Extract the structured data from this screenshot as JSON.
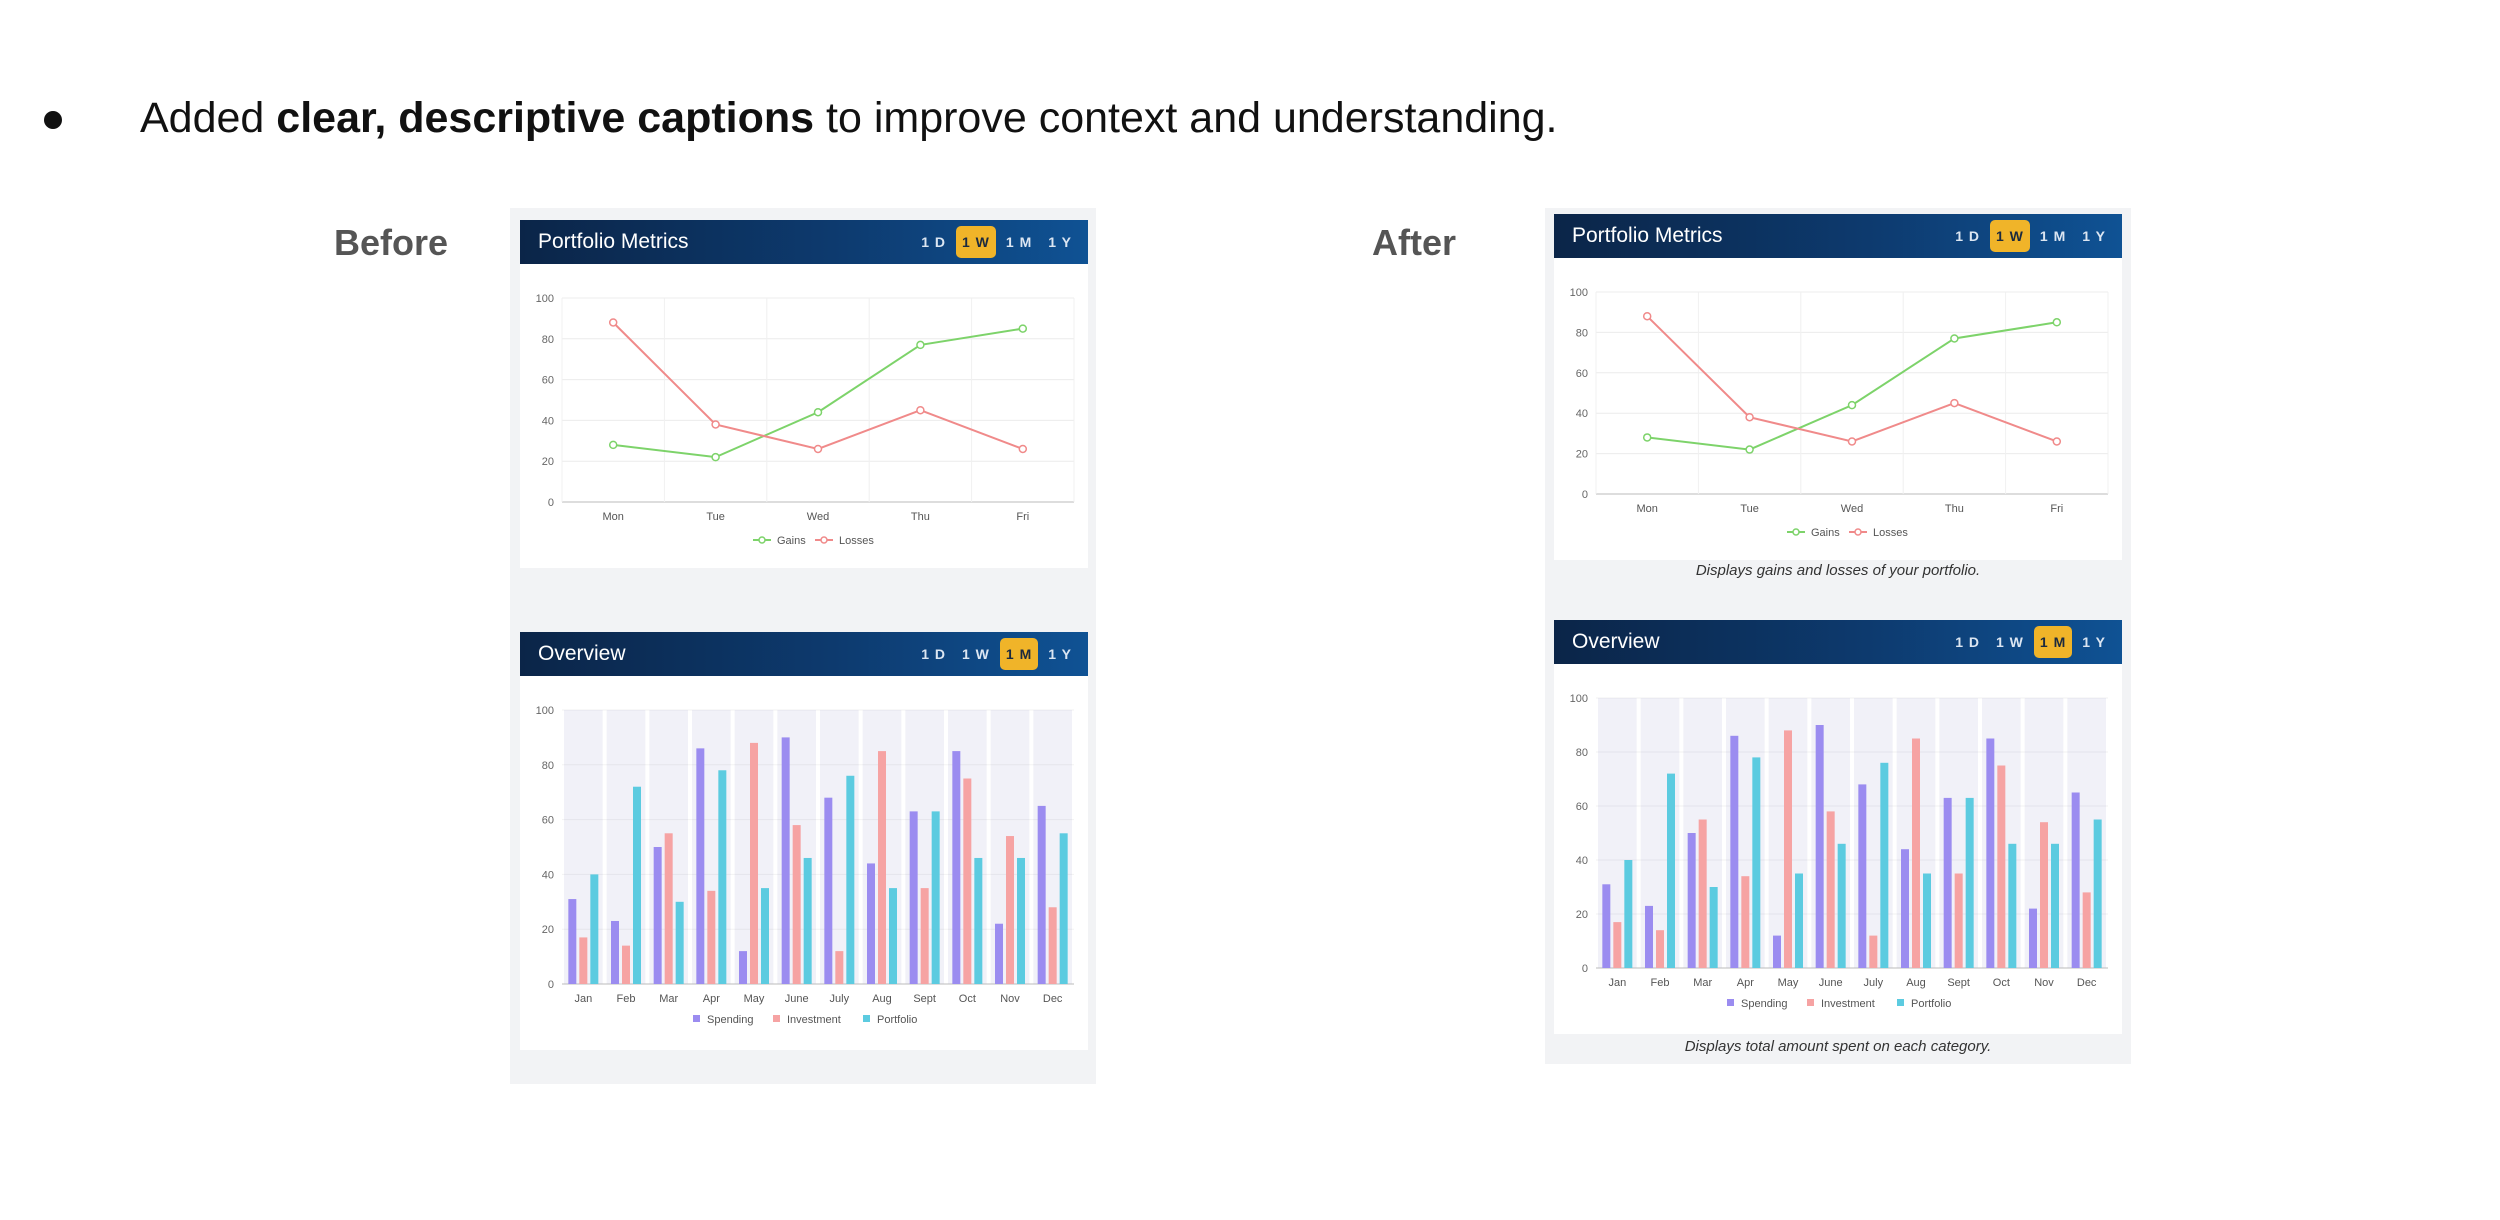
{
  "bullet": {
    "text_before": "Added ",
    "text_bold": "clear, descriptive captions",
    "text_after": " to improve context and understanding."
  },
  "before": {
    "label": "Before"
  },
  "after": {
    "label": "After",
    "portfolio_caption": "Displays gains and losses of your portfolio.",
    "overview_caption": "Displays total amount spent on each category."
  },
  "range_buttons": [
    "1 D",
    "1 W",
    "1 M",
    "1 Y"
  ],
  "portfolio": {
    "title": "Portfolio Metrics",
    "active_range": "1 W"
  },
  "overview": {
    "title": "Overview",
    "active_range": "1 M"
  },
  "colors": {
    "gains": "#7dd36a",
    "losses": "#f08a8a",
    "spending": "#9b8cf0",
    "investment": "#f6a3a3",
    "portfolio": "#5ccbe0",
    "active_btn": "#f0b429"
  },
  "chart_data": [
    {
      "type": "line",
      "title": "Portfolio Metrics",
      "categories": [
        "Mon",
        "Tue",
        "Wed",
        "Thu",
        "Fri"
      ],
      "series": [
        {
          "name": "Gains",
          "values": [
            28,
            22,
            44,
            77,
            85
          ]
        },
        {
          "name": "Losses",
          "values": [
            88,
            38,
            26,
            45,
            26
          ]
        }
      ],
      "yticks": [
        0,
        20,
        40,
        60,
        80,
        100
      ],
      "ylim": [
        0,
        100
      ],
      "legend": "bottom-center",
      "grid": true
    },
    {
      "type": "bar",
      "title": "Overview",
      "categories": [
        "Jan",
        "Feb",
        "Mar",
        "Apr",
        "May",
        "June",
        "July",
        "Aug",
        "Sept",
        "Oct",
        "Nov",
        "Dec"
      ],
      "series": [
        {
          "name": "Spending",
          "values": [
            31,
            23,
            50,
            86,
            12,
            90,
            68,
            44,
            63,
            85,
            22,
            65
          ]
        },
        {
          "name": "Investment",
          "values": [
            17,
            14,
            55,
            34,
            88,
            58,
            12,
            85,
            35,
            75,
            54,
            28
          ]
        },
        {
          "name": "Portfolio",
          "values": [
            40,
            72,
            30,
            78,
            35,
            46,
            76,
            35,
            63,
            46,
            46,
            55
          ]
        }
      ],
      "yticks": [
        0,
        20,
        40,
        60,
        80,
        100
      ],
      "ylim": [
        0,
        100
      ],
      "legend": "bottom-center",
      "grid": true
    }
  ]
}
